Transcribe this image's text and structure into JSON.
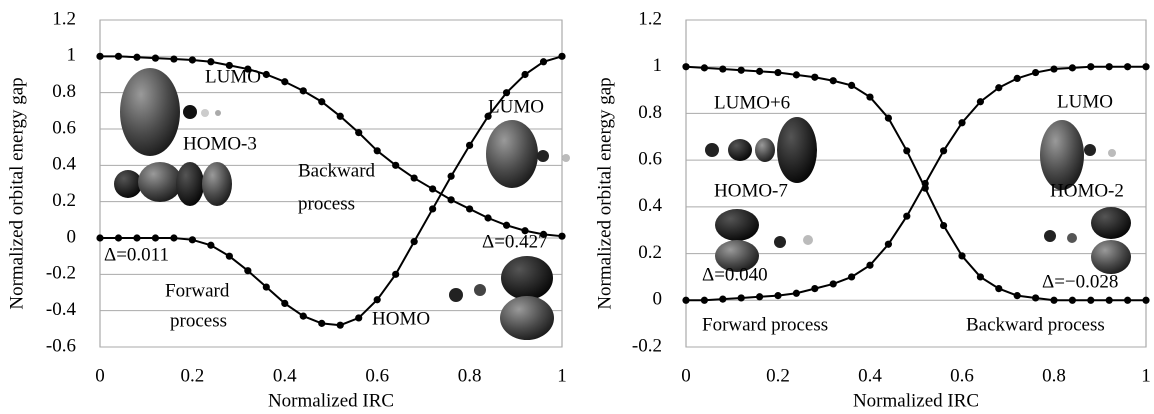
{
  "chart_data": [
    {
      "type": "line",
      "xlabel": "Normalized IRC",
      "ylabel": "Normalized orbital energy gap",
      "x": [
        0,
        0.04,
        0.08,
        0.12,
        0.16,
        0.2,
        0.24,
        0.28,
        0.32,
        0.36,
        0.4,
        0.44,
        0.48,
        0.52,
        0.56,
        0.6,
        0.64,
        0.68,
        0.72,
        0.76,
        0.8,
        0.84,
        0.88,
        0.92,
        0.96,
        1
      ],
      "series": [
        {
          "color": "#000000",
          "values": [
            1,
            1,
            0.995,
            0.99,
            0.985,
            0.98,
            0.97,
            0.95,
            0.93,
            0.9,
            0.86,
            0.81,
            0.75,
            0.67,
            0.58,
            0.48,
            0.4,
            0.33,
            0.27,
            0.21,
            0.16,
            0.11,
            0.07,
            0.04,
            0.02,
            0.01
          ]
        },
        {
          "color": "#000000",
          "values": [
            0,
            0,
            0,
            0,
            0,
            -0.01,
            -0.04,
            -0.1,
            -0.18,
            -0.27,
            -0.36,
            -0.43,
            -0.47,
            -0.48,
            -0.44,
            -0.34,
            -0.2,
            -0.02,
            0.16,
            0.34,
            0.51,
            0.67,
            0.8,
            0.9,
            0.97,
            1
          ]
        }
      ],
      "xlim": [
        0,
        1
      ],
      "ylim": [
        -0.6,
        1.2
      ],
      "xticks": [
        0,
        0.2,
        0.4,
        0.6,
        0.8,
        1
      ],
      "yticks": [
        -0.6,
        -0.4,
        -0.2,
        0,
        0.2,
        0.4,
        0.6,
        0.8,
        1,
        1.2
      ],
      "grid": true,
      "annotations": [
        "LUMO",
        "HOMO-3",
        "Backward",
        "process",
        "LUMO",
        "Δ=0.427",
        "Δ=0.011",
        "Forward",
        "process",
        "HOMO"
      ]
    },
    {
      "type": "line",
      "xlabel": "Normalized IRC",
      "ylabel": "Normalized orbital energy gap",
      "x": [
        0,
        0.04,
        0.08,
        0.12,
        0.16,
        0.2,
        0.24,
        0.28,
        0.32,
        0.36,
        0.4,
        0.44,
        0.48,
        0.52,
        0.56,
        0.6,
        0.64,
        0.68,
        0.72,
        0.76,
        0.8,
        0.84,
        0.88,
        0.92,
        0.96,
        1
      ],
      "series": [
        {
          "color": "#000000",
          "values": [
            1,
            0.995,
            0.99,
            0.985,
            0.98,
            0.975,
            0.965,
            0.955,
            0.94,
            0.92,
            0.87,
            0.78,
            0.64,
            0.48,
            0.32,
            0.19,
            0.1,
            0.05,
            0.02,
            0.01,
            0,
            0,
            0,
            0,
            0,
            0
          ]
        },
        {
          "color": "#000000",
          "values": [
            0,
            0,
            0.005,
            0.01,
            0.015,
            0.02,
            0.03,
            0.05,
            0.07,
            0.1,
            0.15,
            0.24,
            0.36,
            0.5,
            0.64,
            0.76,
            0.85,
            0.91,
            0.95,
            0.975,
            0.99,
            0.995,
            1,
            1,
            1,
            1
          ]
        }
      ],
      "xlim": [
        0,
        1
      ],
      "ylim": [
        -0.2,
        1.2
      ],
      "xticks": [
        0,
        0.2,
        0.4,
        0.6,
        0.8,
        1
      ],
      "yticks": [
        -0.2,
        0,
        0.2,
        0.4,
        0.6,
        0.8,
        1,
        1.2
      ],
      "grid": true,
      "annotations": [
        "LUMO+6",
        "HOMO-7",
        "Δ=0.040",
        "Forward process",
        "LUMO",
        "HOMO-2",
        "Δ=−0.028",
        "Backward process"
      ]
    }
  ]
}
